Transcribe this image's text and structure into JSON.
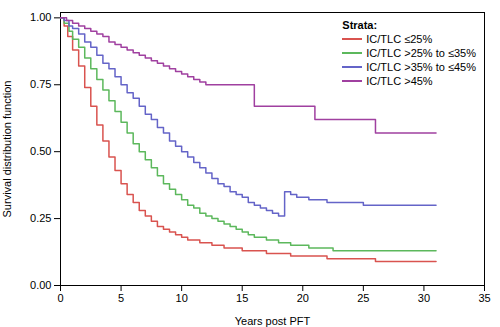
{
  "chart_data": {
    "type": "step",
    "xlabel": "Years post PFT",
    "ylabel": "Survival distribution function",
    "xlim": [
      0,
      35
    ],
    "ylim": [
      0,
      1.02
    ],
    "xticks": [
      0,
      5,
      10,
      15,
      20,
      25,
      30,
      35
    ],
    "yticks": [
      {
        "value": 0,
        "label": "0.00"
      },
      {
        "value": 0.25,
        "label": "0.25"
      },
      {
        "value": 0.5,
        "label": "0.50"
      },
      {
        "value": 0.75,
        "label": "0.75"
      },
      {
        "value": 1,
        "label": "1.00"
      }
    ],
    "grid": false,
    "legend": "upper right",
    "legend_title": "Strata:",
    "series": [
      {
        "name": "IC/TLC ≤25%",
        "color": "#D9534F",
        "x": [
          0,
          0.3,
          0.6,
          1,
          1.5,
          2,
          2.5,
          3,
          3.5,
          4,
          4.5,
          5,
          5.5,
          6,
          6.5,
          7,
          7.5,
          8,
          8.5,
          9,
          9.5,
          10,
          10.5,
          11,
          11.5,
          12,
          12.5,
          13,
          13.5,
          14,
          15,
          16,
          17,
          18,
          19,
          20,
          21,
          22,
          23,
          24,
          25,
          26,
          27,
          28,
          29,
          30,
          31
        ],
        "values": [
          1.0,
          0.97,
          0.93,
          0.88,
          0.82,
          0.74,
          0.67,
          0.6,
          0.54,
          0.48,
          0.43,
          0.38,
          0.34,
          0.31,
          0.28,
          0.26,
          0.24,
          0.22,
          0.21,
          0.2,
          0.19,
          0.18,
          0.17,
          0.17,
          0.16,
          0.16,
          0.15,
          0.15,
          0.14,
          0.14,
          0.13,
          0.13,
          0.12,
          0.12,
          0.11,
          0.11,
          0.11,
          0.1,
          0.1,
          0.1,
          0.1,
          0.09,
          0.09,
          0.09,
          0.09,
          0.09,
          0.09
        ]
      },
      {
        "name": "IC/TLC >25% to ≤35%",
        "color": "#5CB85C",
        "x": [
          0,
          0.3,
          0.7,
          1,
          1.5,
          2,
          2.5,
          3,
          3.5,
          4,
          4.5,
          5,
          5.5,
          6,
          6.5,
          7,
          7.5,
          8,
          8.5,
          9,
          9.5,
          10,
          10.5,
          11,
          11.5,
          12,
          12.5,
          13,
          13.5,
          14,
          14.5,
          15,
          15.5,
          16,
          16.5,
          17,
          17.5,
          18,
          18.5,
          19,
          19.5,
          20,
          20.5,
          21,
          21.5,
          22,
          22.5,
          23,
          23.5,
          24,
          24.5,
          25,
          26,
          27,
          28,
          29,
          30,
          31
        ],
        "values": [
          1.0,
          0.98,
          0.95,
          0.92,
          0.89,
          0.85,
          0.81,
          0.77,
          0.73,
          0.69,
          0.65,
          0.61,
          0.57,
          0.53,
          0.5,
          0.47,
          0.44,
          0.41,
          0.38,
          0.36,
          0.34,
          0.32,
          0.3,
          0.29,
          0.27,
          0.26,
          0.25,
          0.24,
          0.23,
          0.22,
          0.21,
          0.2,
          0.19,
          0.18,
          0.18,
          0.17,
          0.17,
          0.16,
          0.16,
          0.15,
          0.15,
          0.15,
          0.14,
          0.14,
          0.14,
          0.14,
          0.13,
          0.13,
          0.13,
          0.13,
          0.13,
          0.13,
          0.13,
          0.13,
          0.13,
          0.13,
          0.13,
          0.13
        ]
      },
      {
        "name": "IC/TLC >35% to ≤45%",
        "color": "#6464C8",
        "x": [
          0,
          0.3,
          0.7,
          1,
          1.5,
          2,
          2.5,
          3,
          3.5,
          4,
          4.5,
          5,
          5.5,
          6,
          6.5,
          7,
          7.5,
          8,
          8.5,
          9,
          9.5,
          10,
          10.5,
          11,
          11.5,
          12,
          12.5,
          13,
          13.5,
          14,
          14.5,
          15,
          15.5,
          16,
          16.5,
          17,
          17.5,
          18,
          18.5,
          19,
          19.5,
          20,
          20.5,
          21,
          22,
          23,
          24,
          25,
          26,
          27,
          28,
          29,
          30,
          31
        ],
        "values": [
          1.0,
          0.99,
          0.97,
          0.96,
          0.94,
          0.91,
          0.89,
          0.86,
          0.83,
          0.81,
          0.78,
          0.75,
          0.72,
          0.7,
          0.67,
          0.64,
          0.62,
          0.59,
          0.57,
          0.54,
          0.52,
          0.5,
          0.48,
          0.46,
          0.44,
          0.42,
          0.4,
          0.38,
          0.37,
          0.35,
          0.34,
          0.33,
          0.31,
          0.3,
          0.29,
          0.28,
          0.27,
          0.26,
          0.35,
          0.34,
          0.33,
          0.33,
          0.32,
          0.32,
          0.31,
          0.31,
          0.31,
          0.3,
          0.3,
          0.3,
          0.3,
          0.3,
          0.3,
          0.3
        ]
      },
      {
        "name": "IC/TLC >45%",
        "color": "#A040A0",
        "x": [
          0,
          0.5,
          1,
          1.5,
          2,
          2.5,
          3,
          3.5,
          4,
          4.5,
          5,
          5.5,
          6,
          6.5,
          7,
          7.5,
          8,
          8.5,
          9,
          9.5,
          10,
          10.5,
          11,
          11.5,
          12,
          12.5,
          13,
          14,
          15,
          16,
          17,
          18,
          19,
          20,
          21,
          22,
          23,
          24,
          25,
          26,
          27,
          28,
          29,
          30,
          31
        ],
        "values": [
          1.0,
          0.99,
          0.98,
          0.97,
          0.96,
          0.95,
          0.94,
          0.93,
          0.91,
          0.9,
          0.89,
          0.88,
          0.87,
          0.86,
          0.85,
          0.84,
          0.83,
          0.82,
          0.81,
          0.8,
          0.79,
          0.78,
          0.77,
          0.76,
          0.75,
          0.75,
          0.75,
          0.75,
          0.75,
          0.67,
          0.67,
          0.67,
          0.67,
          0.67,
          0.62,
          0.62,
          0.62,
          0.62,
          0.62,
          0.57,
          0.57,
          0.57,
          0.57,
          0.57,
          0.57
        ]
      }
    ]
  }
}
